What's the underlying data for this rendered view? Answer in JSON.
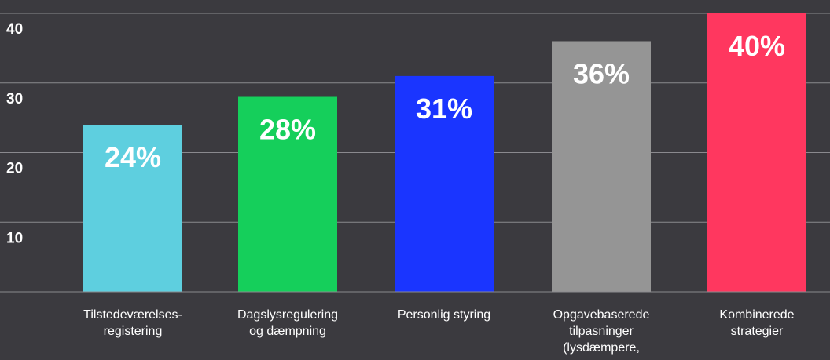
{
  "chart_data": {
    "type": "bar",
    "title": "",
    "xlabel": "",
    "ylabel": "",
    "ylim": [
      0,
      40
    ],
    "y_ticks": [
      10,
      20,
      30,
      40
    ],
    "grid": true,
    "background": "#3b3a3f",
    "categories": [
      [
        "Tilstedeværelses-",
        "registering"
      ],
      [
        "Dagslysregulering",
        "og dæmpning"
      ],
      [
        "Personlig styring"
      ],
      [
        "Opgavebaserede",
        "tilpasninger",
        "(lysdæmpere,"
      ],
      [
        "Kombinerede",
        "strategier"
      ]
    ],
    "values": [
      24,
      28,
      31,
      36,
      40
    ],
    "value_labels": [
      "24%",
      "28%",
      "31%",
      "36%",
      "40%"
    ],
    "colors": [
      "#5ecfdf",
      "#15cf5b",
      "#1a35ff",
      "#959595",
      "#ff375f"
    ]
  }
}
